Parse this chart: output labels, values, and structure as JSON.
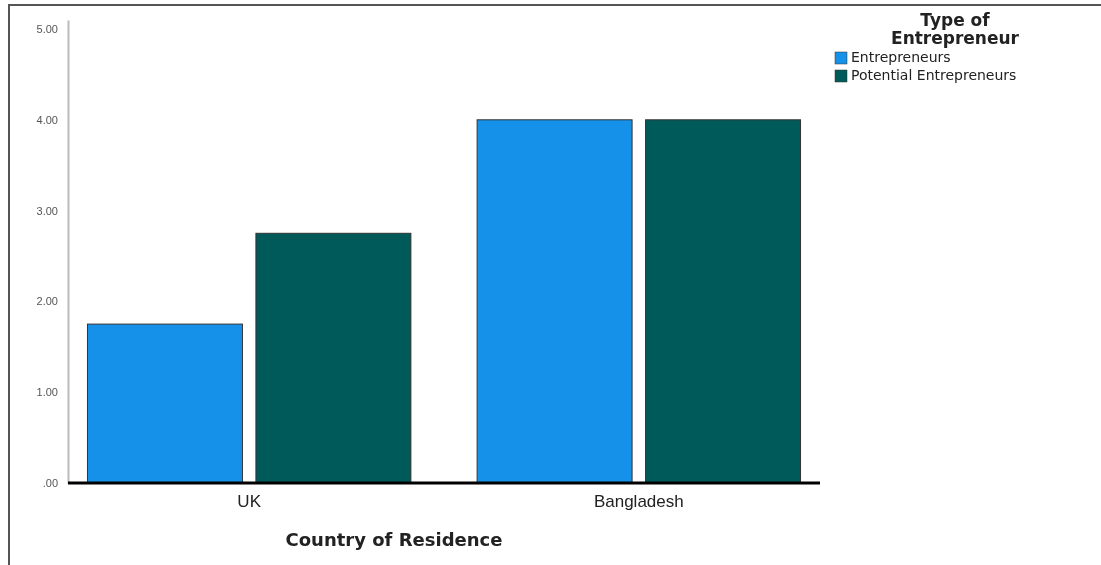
{
  "chart_data": {
    "type": "bar",
    "xlabel": "Country of Residence",
    "legend_title": "Type of Entrepreneur",
    "categories": [
      "UK",
      "Bangladesh"
    ],
    "series": [
      {
        "name": "Entrepreneurs",
        "color": "#1591ea",
        "values": [
          1.75,
          4.0
        ]
      },
      {
        "name": "Potential Entrepreneurs",
        "color": "#005a5a",
        "values": [
          2.75,
          4.0
        ]
      }
    ],
    "ylim": [
      0,
      5.1
    ],
    "yticks": [
      {
        "value": 0,
        "label": ".00"
      },
      {
        "value": 1,
        "label": "1.00"
      },
      {
        "value": 2,
        "label": "2.00"
      },
      {
        "value": 3,
        "label": "3.00"
      },
      {
        "value": 4,
        "label": "4.00"
      },
      {
        "value": 5,
        "label": "5.00"
      }
    ],
    "grid": false,
    "legend": "top right"
  }
}
